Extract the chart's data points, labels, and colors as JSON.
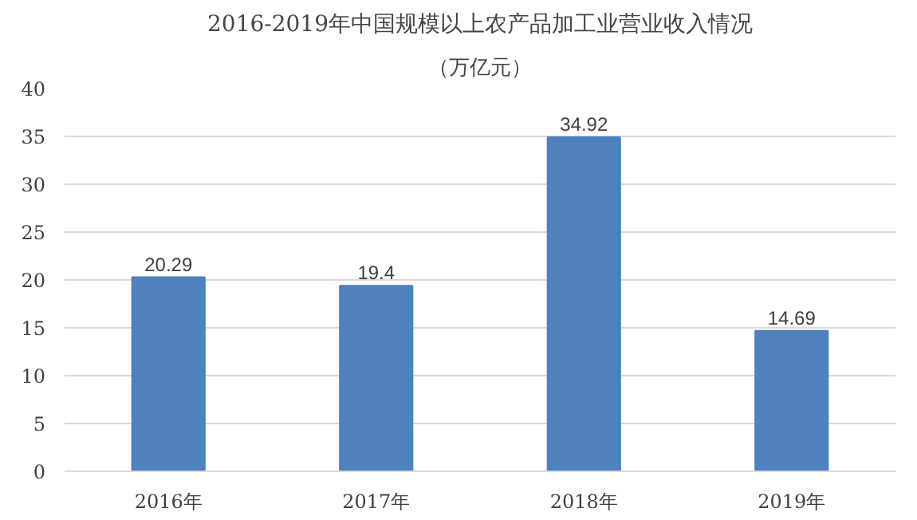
{
  "chart_data": {
    "type": "bar",
    "title": "2016-2019年中国规模以上农产品加工业营业收入情况",
    "subtitle": "（万亿元）",
    "categories": [
      "2016年",
      "2017年",
      "2018年",
      "2019年"
    ],
    "values": [
      20.29,
      19.4,
      34.92,
      14.69
    ],
    "color": "#4f81bd",
    "ylim": [
      0,
      40
    ],
    "yticks": [
      0,
      5,
      10,
      15,
      20,
      25,
      30,
      35,
      40
    ],
    "grid": "y",
    "data_labels": true
  }
}
